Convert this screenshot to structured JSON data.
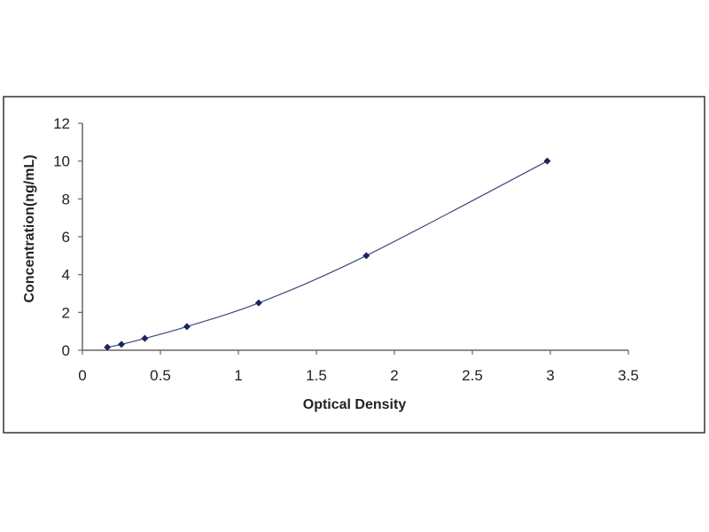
{
  "chart_data": {
    "type": "scatter",
    "xlabel": "Optical Density",
    "ylabel": "Concentration(ng/mL)",
    "xlim": [
      0,
      3.5
    ],
    "ylim": [
      0,
      12
    ],
    "x_ticks": [
      "0",
      "0.5",
      "1",
      "1.5",
      "2",
      "2.5",
      "3",
      "3.5"
    ],
    "y_ticks": [
      "0",
      "2",
      "4",
      "6",
      "8",
      "10",
      "12"
    ],
    "grid": false,
    "legend": "none",
    "fitted_curve": true,
    "series": [
      {
        "x": [
          0.16,
          0.25,
          0.4,
          0.67,
          1.13,
          1.82,
          2.98
        ],
        "y": [
          0.16,
          0.31,
          0.625,
          1.25,
          2.5,
          5,
          10
        ]
      }
    ],
    "colors": {
      "marker": "#1c2460",
      "curve": "#3a4a7a",
      "axis": "#666666"
    }
  }
}
